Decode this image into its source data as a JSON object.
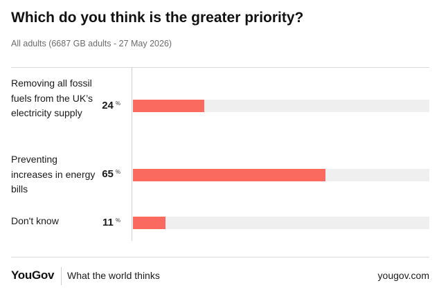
{
  "chart_data": {
    "type": "bar",
    "orientation": "horizontal",
    "title": "Which do you think is the greater priority?",
    "subtitle": "All adults (6687 GB adults - 27 May 2026)",
    "categories": [
      "Removing all fossil fuels from the UK’s electricity supply",
      "Preventing increases in energy bills",
      "Don't know"
    ],
    "value_labels": [
      "24",
      "65",
      "11"
    ],
    "values": [
      24,
      65,
      11
    ],
    "unit": "%",
    "xlim": [
      0,
      100
    ],
    "bar_color": "#fb6a5f",
    "track_color": "#efefef",
    "grid": false
  },
  "footer": {
    "logo": "YouGov",
    "tagline": "What the world thinks",
    "site": "yougov.com"
  }
}
